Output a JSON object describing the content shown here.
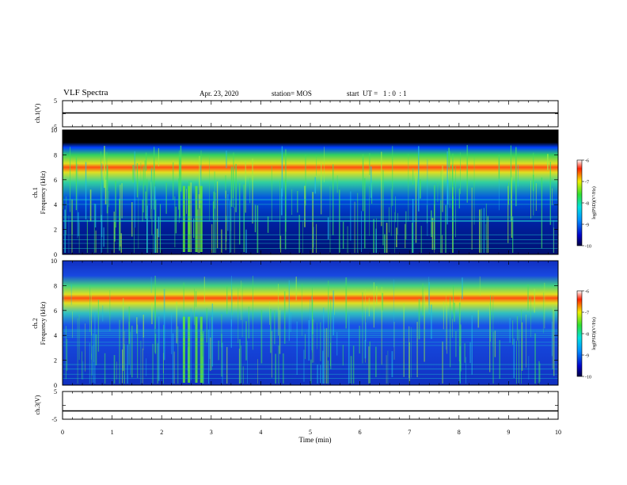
{
  "header": {
    "title": "VLF Spectra",
    "date": "Apr. 23, 2020",
    "station": "station= MOS",
    "start_ut": "start  UT =   1 : 0  : 1"
  },
  "panels": {
    "ch1_voltage": {
      "label": "ch.1(V)",
      "y_ticks": [
        "5",
        "-5"
      ]
    },
    "ch1_spectrum": {
      "label_ch": "ch.1",
      "label_freq": "Frequency (kHz)",
      "y_ticks": [
        "10",
        "8",
        "6",
        "4",
        "2",
        "0"
      ]
    },
    "ch2_spectrum": {
      "label_ch": "ch.2",
      "label_freq": "Frequency (kHz)",
      "y_ticks": [
        "10",
        "8",
        "6",
        "4",
        "2",
        "0"
      ]
    },
    "ch3_voltage": {
      "label": "ch.3(V)",
      "y_ticks": [
        "5",
        "-5"
      ]
    }
  },
  "colorbars": [
    {
      "label": "log(PSD)(V²/Hz)",
      "ticks": [
        "-6",
        "-7",
        "-8",
        "-9",
        "-10"
      ]
    },
    {
      "label": "log(PSD)(V²/Hz)",
      "ticks": [
        "-6",
        "-7",
        "-8",
        "-9",
        "-10"
      ]
    }
  ],
  "x_axis": {
    "label": "Time (min)",
    "ticks": [
      "0",
      "1",
      "2",
      "3",
      "4",
      "5",
      "6",
      "7",
      "8",
      "9",
      "10"
    ]
  },
  "chart_data": [
    {
      "type": "line",
      "xlabel": "",
      "ylabel": "ch.1(V)",
      "xlim": [
        0,
        10
      ],
      "ylim": [
        -5,
        5
      ],
      "x": [
        0,
        10
      ],
      "series": [
        {
          "values": [
            0.3,
            0.3
          ]
        }
      ]
    },
    {
      "type": "heatmap",
      "xlabel": "",
      "ylabel": "Frequency (kHz)",
      "xlim": [
        0,
        10
      ],
      "ylim": [
        0,
        10
      ],
      "colorbar_range": [
        -10,
        -6
      ],
      "colorbar_label": "log(PSD)(V²/Hz)",
      "band_center_khz": 7
    },
    {
      "type": "heatmap",
      "xlabel": "",
      "ylabel": "Frequency (kHz)",
      "xlim": [
        0,
        10
      ],
      "ylim": [
        0,
        10
      ],
      "colorbar_range": [
        -10,
        -6
      ],
      "colorbar_label": "log(PSD)(V²/Hz)",
      "band_center_khz": 7
    },
    {
      "type": "line",
      "xlabel": "Time (min)",
      "ylabel": "ch.3(V)",
      "xlim": [
        0,
        10
      ],
      "ylim": [
        -5,
        5
      ],
      "x": [
        0,
        10
      ],
      "series": [
        {
          "values": [
            -2,
            -2
          ]
        }
      ]
    }
  ],
  "colors": {
    "background": "#ffffff",
    "axis": "#000000"
  }
}
